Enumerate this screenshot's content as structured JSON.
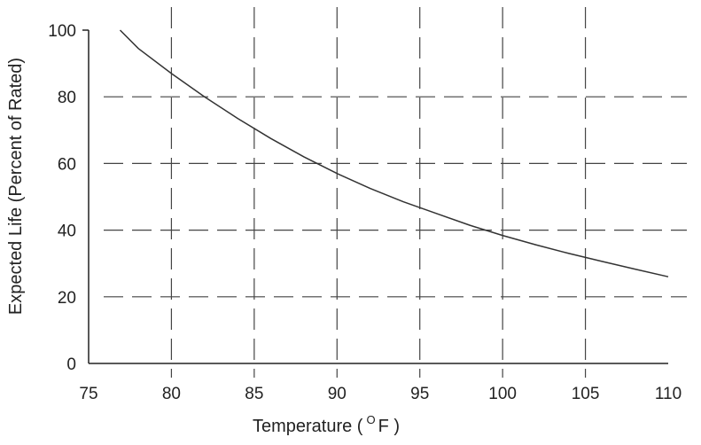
{
  "chart_data": {
    "type": "line",
    "xlabel_prefix": "Temperature (",
    "xlabel_unit_sup": "O",
    "xlabel_unit": "F )",
    "ylabel": "Expected Life (Percent of Rated)",
    "xlim": [
      75,
      110
    ],
    "ylim": [
      0,
      100
    ],
    "x_ticks": [
      "75",
      "80",
      "85",
      "90",
      "95",
      "100",
      "105",
      "110"
    ],
    "y_ticks": [
      "0",
      "20",
      "40",
      "60",
      "80",
      "100"
    ],
    "grid": true,
    "series": [
      {
        "color": "#333333",
        "x": [
          76.9,
          78,
          80,
          82,
          84,
          86,
          88,
          90,
          92,
          94,
          96,
          98,
          100,
          102,
          104,
          106,
          108,
          110
        ],
        "y": [
          100,
          94.5,
          87,
          80,
          73.5,
          67.5,
          62,
          57,
          52.5,
          48.5,
          45,
          41.5,
          38.4,
          35.6,
          33,
          30.6,
          28.3,
          26
        ]
      }
    ]
  }
}
